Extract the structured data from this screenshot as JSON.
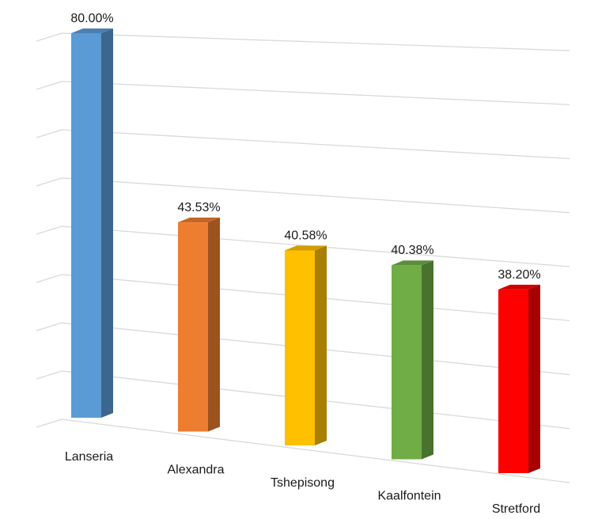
{
  "chart_data": {
    "type": "bar",
    "categories": [
      "Lanseria",
      "Alexandra",
      "Tshepisong",
      "Kaalfontein",
      "Stretford"
    ],
    "values": [
      80.0,
      43.53,
      40.58,
      40.38,
      38.2
    ],
    "data_labels": [
      "80.00%",
      "43.53%",
      "40.58%",
      "40.38%",
      "38.20%"
    ],
    "colors": [
      "#5b9bd5",
      "#ed7d31",
      "#ffc000",
      "#70ad47",
      "#ff0000"
    ],
    "ylim": [
      0,
      80
    ],
    "grid": true,
    "style": "3d-column"
  }
}
